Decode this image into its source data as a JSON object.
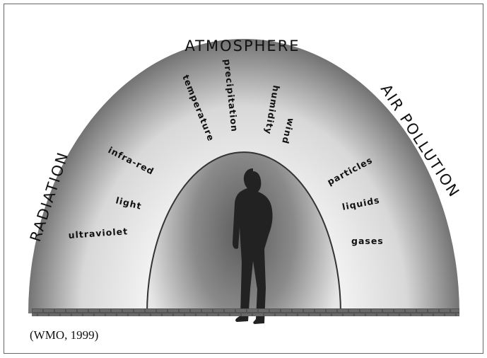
{
  "diagram": {
    "outer": "ATMOSPHERE",
    "left": "RADIATION",
    "right": "AIR POLLUTION",
    "atmosphere_factors": [
      "temperature",
      "precipitation",
      "humidity",
      "wind"
    ],
    "radiation_types": [
      "infra-red",
      "light",
      "ultraviolet"
    ],
    "pollution_types": [
      "particles",
      "liquids",
      "gases"
    ]
  },
  "caption": "(WMO, 1999)"
}
